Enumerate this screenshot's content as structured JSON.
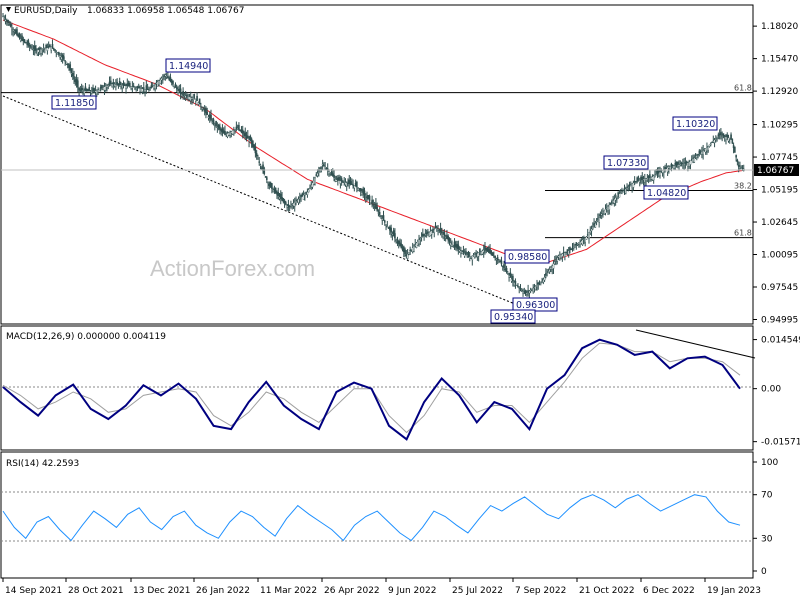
{
  "header": {
    "symbol": "EURUSD,Daily",
    "ohlc": "1.06833 1.06958 1.06548 1.06767"
  },
  "watermark": "ActionForex.com",
  "colors": {
    "candle": "#2f4f4f",
    "sma": "#e8202a",
    "macd": "#000080",
    "signal": "#a0a0a0",
    "rsi": "#1e90ff",
    "box": "#000080",
    "guide": "#000000"
  },
  "chart_data": [
    {
      "type": "candlestick",
      "panel": "price",
      "ylim": [
        0.9472,
        1.196
      ],
      "y_ticks": [
        "1.18020",
        "1.15470",
        "1.12920",
        "1.10295",
        "1.07745",
        "1.05195",
        "1.02645",
        "1.00095",
        "0.97545",
        "0.94995"
      ],
      "current_price": "1.06767",
      "x_ticks": [
        "14 Sep 2021",
        "28 Oct 2021",
        "13 Dec 2021",
        "26 Jan 2022",
        "11 Mar 2022",
        "26 Apr 2022",
        "9 Jun 2022",
        "25 Jul 2022",
        "7 Sep 2022",
        "21 Oct 2022",
        "6 Dec 2022",
        "19 Jan 2023"
      ],
      "price_path": [
        [
          0,
          1.188
        ],
        [
          12,
          1.172
        ],
        [
          25,
          1.161
        ],
        [
          38,
          1.164
        ],
        [
          50,
          1.152
        ],
        [
          60,
          1.13
        ],
        [
          72,
          1.129
        ],
        [
          85,
          1.135
        ],
        [
          100,
          1.133
        ],
        [
          115,
          1.13
        ],
        [
          128,
          1.142
        ],
        [
          140,
          1.127
        ],
        [
          152,
          1.123
        ],
        [
          165,
          1.105
        ],
        [
          175,
          1.095
        ],
        [
          185,
          1.1
        ],
        [
          195,
          1.09
        ],
        [
          210,
          1.055
        ],
        [
          225,
          1.038
        ],
        [
          240,
          1.05
        ],
        [
          252,
          1.072
        ],
        [
          262,
          1.06
        ],
        [
          278,
          1.055
        ],
        [
          292,
          1.04
        ],
        [
          305,
          1.02
        ],
        [
          318,
          1.0
        ],
        [
          330,
          1.015
        ],
        [
          342,
          1.022
        ],
        [
          355,
          1.008
        ],
        [
          368,
          0.999
        ],
        [
          380,
          1.005
        ],
        [
          392,
          0.995
        ],
        [
          402,
          0.98
        ],
        [
          412,
          0.97
        ],
        [
          425,
          0.98
        ],
        [
          438,
          1.0
        ],
        [
          448,
          1.005
        ],
        [
          460,
          1.015
        ],
        [
          472,
          1.033
        ],
        [
          485,
          1.048
        ],
        [
          498,
          1.058
        ],
        [
          512,
          1.062
        ],
        [
          525,
          1.07
        ],
        [
          540,
          1.073
        ],
        [
          555,
          1.085
        ],
        [
          565,
          1.095
        ],
        [
          574,
          1.092
        ],
        [
          580,
          1.07
        ],
        [
          585,
          1.0677
        ]
      ],
      "sma_path": [
        [
          0,
          1.185
        ],
        [
          40,
          1.17
        ],
        [
          80,
          1.15
        ],
        [
          120,
          1.135
        ],
        [
          160,
          1.115
        ],
        [
          200,
          1.085
        ],
        [
          240,
          1.06
        ],
        [
          280,
          1.045
        ],
        [
          320,
          1.03
        ],
        [
          360,
          1.015
        ],
        [
          400,
          1.0
        ],
        [
          430,
          0.995
        ],
        [
          460,
          1.005
        ],
        [
          490,
          1.025
        ],
        [
          520,
          1.045
        ],
        [
          550,
          1.058
        ],
        [
          570,
          1.065
        ],
        [
          585,
          1.0672
        ]
      ],
      "levels": [
        {
          "label": "1.14940",
          "price": 1.1494
        },
        {
          "label": "1.11850",
          "price": 1.1185
        },
        {
          "label": "1.10320",
          "price": 1.1032
        },
        {
          "label": "1.07330",
          "price": 1.0733
        },
        {
          "label": "1.04820",
          "price": 1.0482
        },
        {
          "label": "0.98580",
          "price": 0.9858
        },
        {
          "label": "0.96300",
          "price": 0.963
        },
        {
          "label": "0.95340",
          "price": 0.9534
        }
      ],
      "fib_levels": [
        {
          "label": "61.8",
          "price": 1.128
        },
        {
          "label": "38.2",
          "price": 1.0512
        },
        {
          "label": "61.8",
          "price": 1.0142
        }
      ]
    },
    {
      "type": "line",
      "panel": "macd",
      "title": "MACD(12,26,9) 0.000000 0.004119",
      "ylim": [
        -0.017,
        0.0165
      ],
      "y_ticks": [
        "0.014549",
        "0.00",
        "-0.015712"
      ],
      "series": [
        {
          "name": "MACD",
          "values": [
            0.0005,
            -0.004,
            -0.008,
            -0.002,
            0.0012,
            -0.006,
            -0.009,
            -0.005,
            0.001,
            -0.002,
            0.0015,
            -0.003,
            -0.011,
            -0.012,
            -0.004,
            0.002,
            -0.005,
            -0.009,
            -0.012,
            -0.001,
            0.0018,
            0.0,
            -0.011,
            -0.015,
            -0.004,
            0.003,
            -0.002,
            -0.01,
            -0.004,
            -0.006,
            -0.012,
            0.0,
            0.004,
            0.012,
            0.0145,
            0.013,
            0.01,
            0.011,
            0.006,
            0.009,
            0.0095,
            0.007,
            0.0
          ]
        },
        {
          "name": "Signal",
          "values": [
            0.001,
            -0.002,
            -0.006,
            -0.004,
            -0.001,
            -0.003,
            -0.007,
            -0.006,
            -0.002,
            -0.001,
            0.0,
            -0.001,
            -0.008,
            -0.011,
            -0.007,
            -0.001,
            -0.003,
            -0.007,
            -0.01,
            -0.005,
            0.0,
            0.0,
            -0.008,
            -0.013,
            -0.008,
            0.0,
            -0.001,
            -0.007,
            -0.005,
            -0.005,
            -0.01,
            -0.004,
            0.002,
            0.009,
            0.0135,
            0.013,
            0.011,
            0.011,
            0.008,
            0.009,
            0.009,
            0.008,
            0.004
          ]
        }
      ]
    },
    {
      "type": "line",
      "panel": "rsi",
      "title": "RSI(14) 42.2593",
      "ylim": [
        0,
        100
      ],
      "y_ticks": [
        "100",
        "70",
        "30",
        "0"
      ],
      "series": [
        {
          "name": "RSI",
          "values": [
            55,
            40,
            30,
            45,
            50,
            38,
            28,
            42,
            55,
            48,
            40,
            52,
            58,
            45,
            38,
            50,
            55,
            42,
            35,
            30,
            45,
            55,
            50,
            40,
            32,
            48,
            60,
            52,
            45,
            38,
            28,
            42,
            50,
            55,
            45,
            35,
            28,
            40,
            55,
            50,
            42,
            35,
            48,
            60,
            55,
            62,
            68,
            60,
            52,
            48,
            58,
            66,
            70,
            65,
            58,
            66,
            70,
            62,
            55,
            60,
            65,
            70,
            68,
            55,
            45,
            42
          ]
        }
      ]
    }
  ]
}
